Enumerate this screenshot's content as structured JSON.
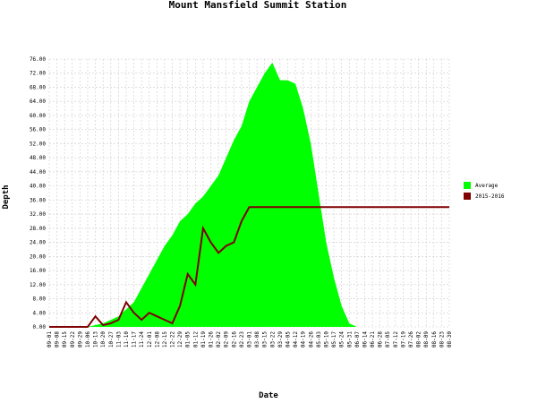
{
  "chart_data": {
    "type": "area-line",
    "title": "Mount Mansfield Summit Station",
    "x_label": "Date",
    "y_label": "Depth",
    "categories": [
      "09-01",
      "09-08",
      "09-15",
      "09-22",
      "09-29",
      "10-06",
      "10-13",
      "10-20",
      "10-27",
      "11-03",
      "11-10",
      "11-17",
      "11-24",
      "12-01",
      "12-08",
      "12-15",
      "12-22",
      "12-29",
      "01-05",
      "01-12",
      "01-19",
      "01-26",
      "02-02",
      "02-09",
      "02-16",
      "02-23",
      "03-01",
      "03-08",
      "03-15",
      "03-22",
      "03-29",
      "04-05",
      "04-12",
      "04-19",
      "04-26",
      "05-03",
      "05-10",
      "05-17",
      "05-24",
      "05-31",
      "06-07",
      "06-14",
      "06-21",
      "06-28",
      "07-05",
      "07-12",
      "07-19",
      "07-26",
      "08-02",
      "08-09",
      "08-16",
      "08-23",
      "08-30"
    ],
    "series": [
      {
        "name": "Average",
        "color": "#00ff00",
        "values": [
          0,
          0,
          0,
          0,
          0,
          0,
          0.5,
          1,
          2,
          3,
          5,
          7,
          11,
          15,
          19,
          23,
          26,
          30,
          32,
          35,
          37,
          40,
          43,
          48,
          53,
          57,
          64,
          68,
          72,
          75,
          70,
          70,
          69,
          62,
          52,
          38,
          24,
          14,
          6,
          1,
          0,
          0,
          0,
          0,
          0,
          0,
          0,
          0,
          0,
          0,
          0,
          0,
          0
        ]
      },
      {
        "name": "2015-2016",
        "color": "#7f0000",
        "values": [
          0,
          0,
          0,
          0,
          0,
          0,
          3,
          0.5,
          1,
          2,
          7,
          4,
          2,
          4,
          3,
          2,
          1,
          6,
          15,
          12,
          28,
          24,
          21,
          23,
          24,
          30,
          34,
          34,
          34,
          34,
          34,
          34,
          34,
          34,
          34,
          34,
          34,
          34,
          34,
          34,
          34,
          34,
          34,
          34,
          34,
          34,
          34,
          34,
          34,
          34,
          34,
          34,
          34
        ]
      }
    ],
    "ylim": [
      0,
      76
    ],
    "yticks": [
      {
        "value": 0,
        "label": "0.00"
      },
      {
        "value": 4,
        "label": "4.00"
      },
      {
        "value": 8,
        "label": "8.00"
      },
      {
        "value": 12,
        "label": "12.00"
      },
      {
        "value": 16,
        "label": "16.00"
      },
      {
        "value": 20,
        "label": "20.00"
      },
      {
        "value": 24,
        "label": "24.00"
      },
      {
        "value": 28,
        "label": "28.00"
      },
      {
        "value": 32,
        "label": "32.00"
      },
      {
        "value": 36,
        "label": "36.00"
      },
      {
        "value": 40,
        "label": "40.00"
      },
      {
        "value": 44,
        "label": "44.00"
      },
      {
        "value": 48,
        "label": "48.00"
      },
      {
        "value": 52,
        "label": "52.00"
      },
      {
        "value": 56,
        "label": "56.00"
      },
      {
        "value": 60,
        "label": "60.00"
      },
      {
        "value": 64,
        "label": "64.00"
      },
      {
        "value": 68,
        "label": "68.00"
      },
      {
        "value": 72,
        "label": "72.00"
      },
      {
        "value": 76,
        "label": "76.00"
      }
    ],
    "grid": true,
    "legend": "right"
  }
}
